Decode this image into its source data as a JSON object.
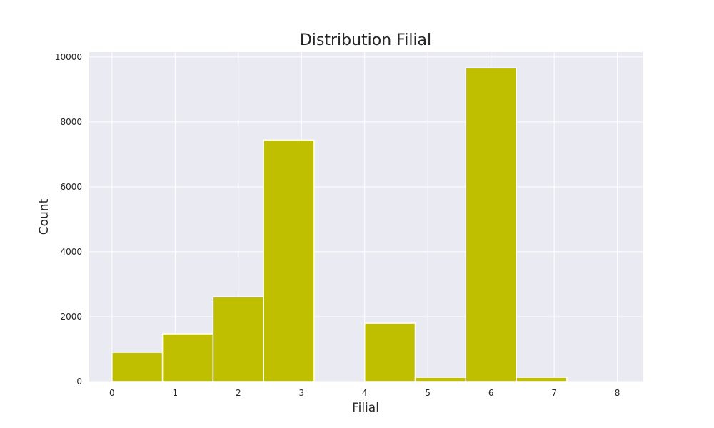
{
  "chart_data": {
    "type": "bar",
    "title": "Distribution Filial",
    "xlabel": "Filial",
    "ylabel": "Count",
    "bins": [
      {
        "start": 0.0,
        "end": 0.8,
        "count": 900
      },
      {
        "start": 0.8,
        "end": 1.6,
        "count": 1470
      },
      {
        "start": 1.6,
        "end": 2.4,
        "count": 2610
      },
      {
        "start": 2.4,
        "end": 3.2,
        "count": 7440
      },
      {
        "start": 3.2,
        "end": 4.0,
        "count": 0
      },
      {
        "start": 4.0,
        "end": 4.8,
        "count": 1800
      },
      {
        "start": 4.8,
        "end": 5.6,
        "count": 130
      },
      {
        "start": 5.6,
        "end": 6.4,
        "count": 9660
      },
      {
        "start": 6.4,
        "end": 7.2,
        "count": 130
      },
      {
        "start": 7.2,
        "end": 8.0,
        "count": 0
      }
    ],
    "xlim": [
      -0.36,
      8.4
    ],
    "ylim": [
      0,
      10150
    ],
    "xticks": [
      0,
      1,
      2,
      3,
      4,
      5,
      6,
      7,
      8
    ],
    "yticks": [
      0,
      2000,
      4000,
      6000,
      8000,
      10000
    ],
    "bar_color": "#bfbf00",
    "background_color": "#eaeaf2",
    "grid": true,
    "legend": false
  }
}
